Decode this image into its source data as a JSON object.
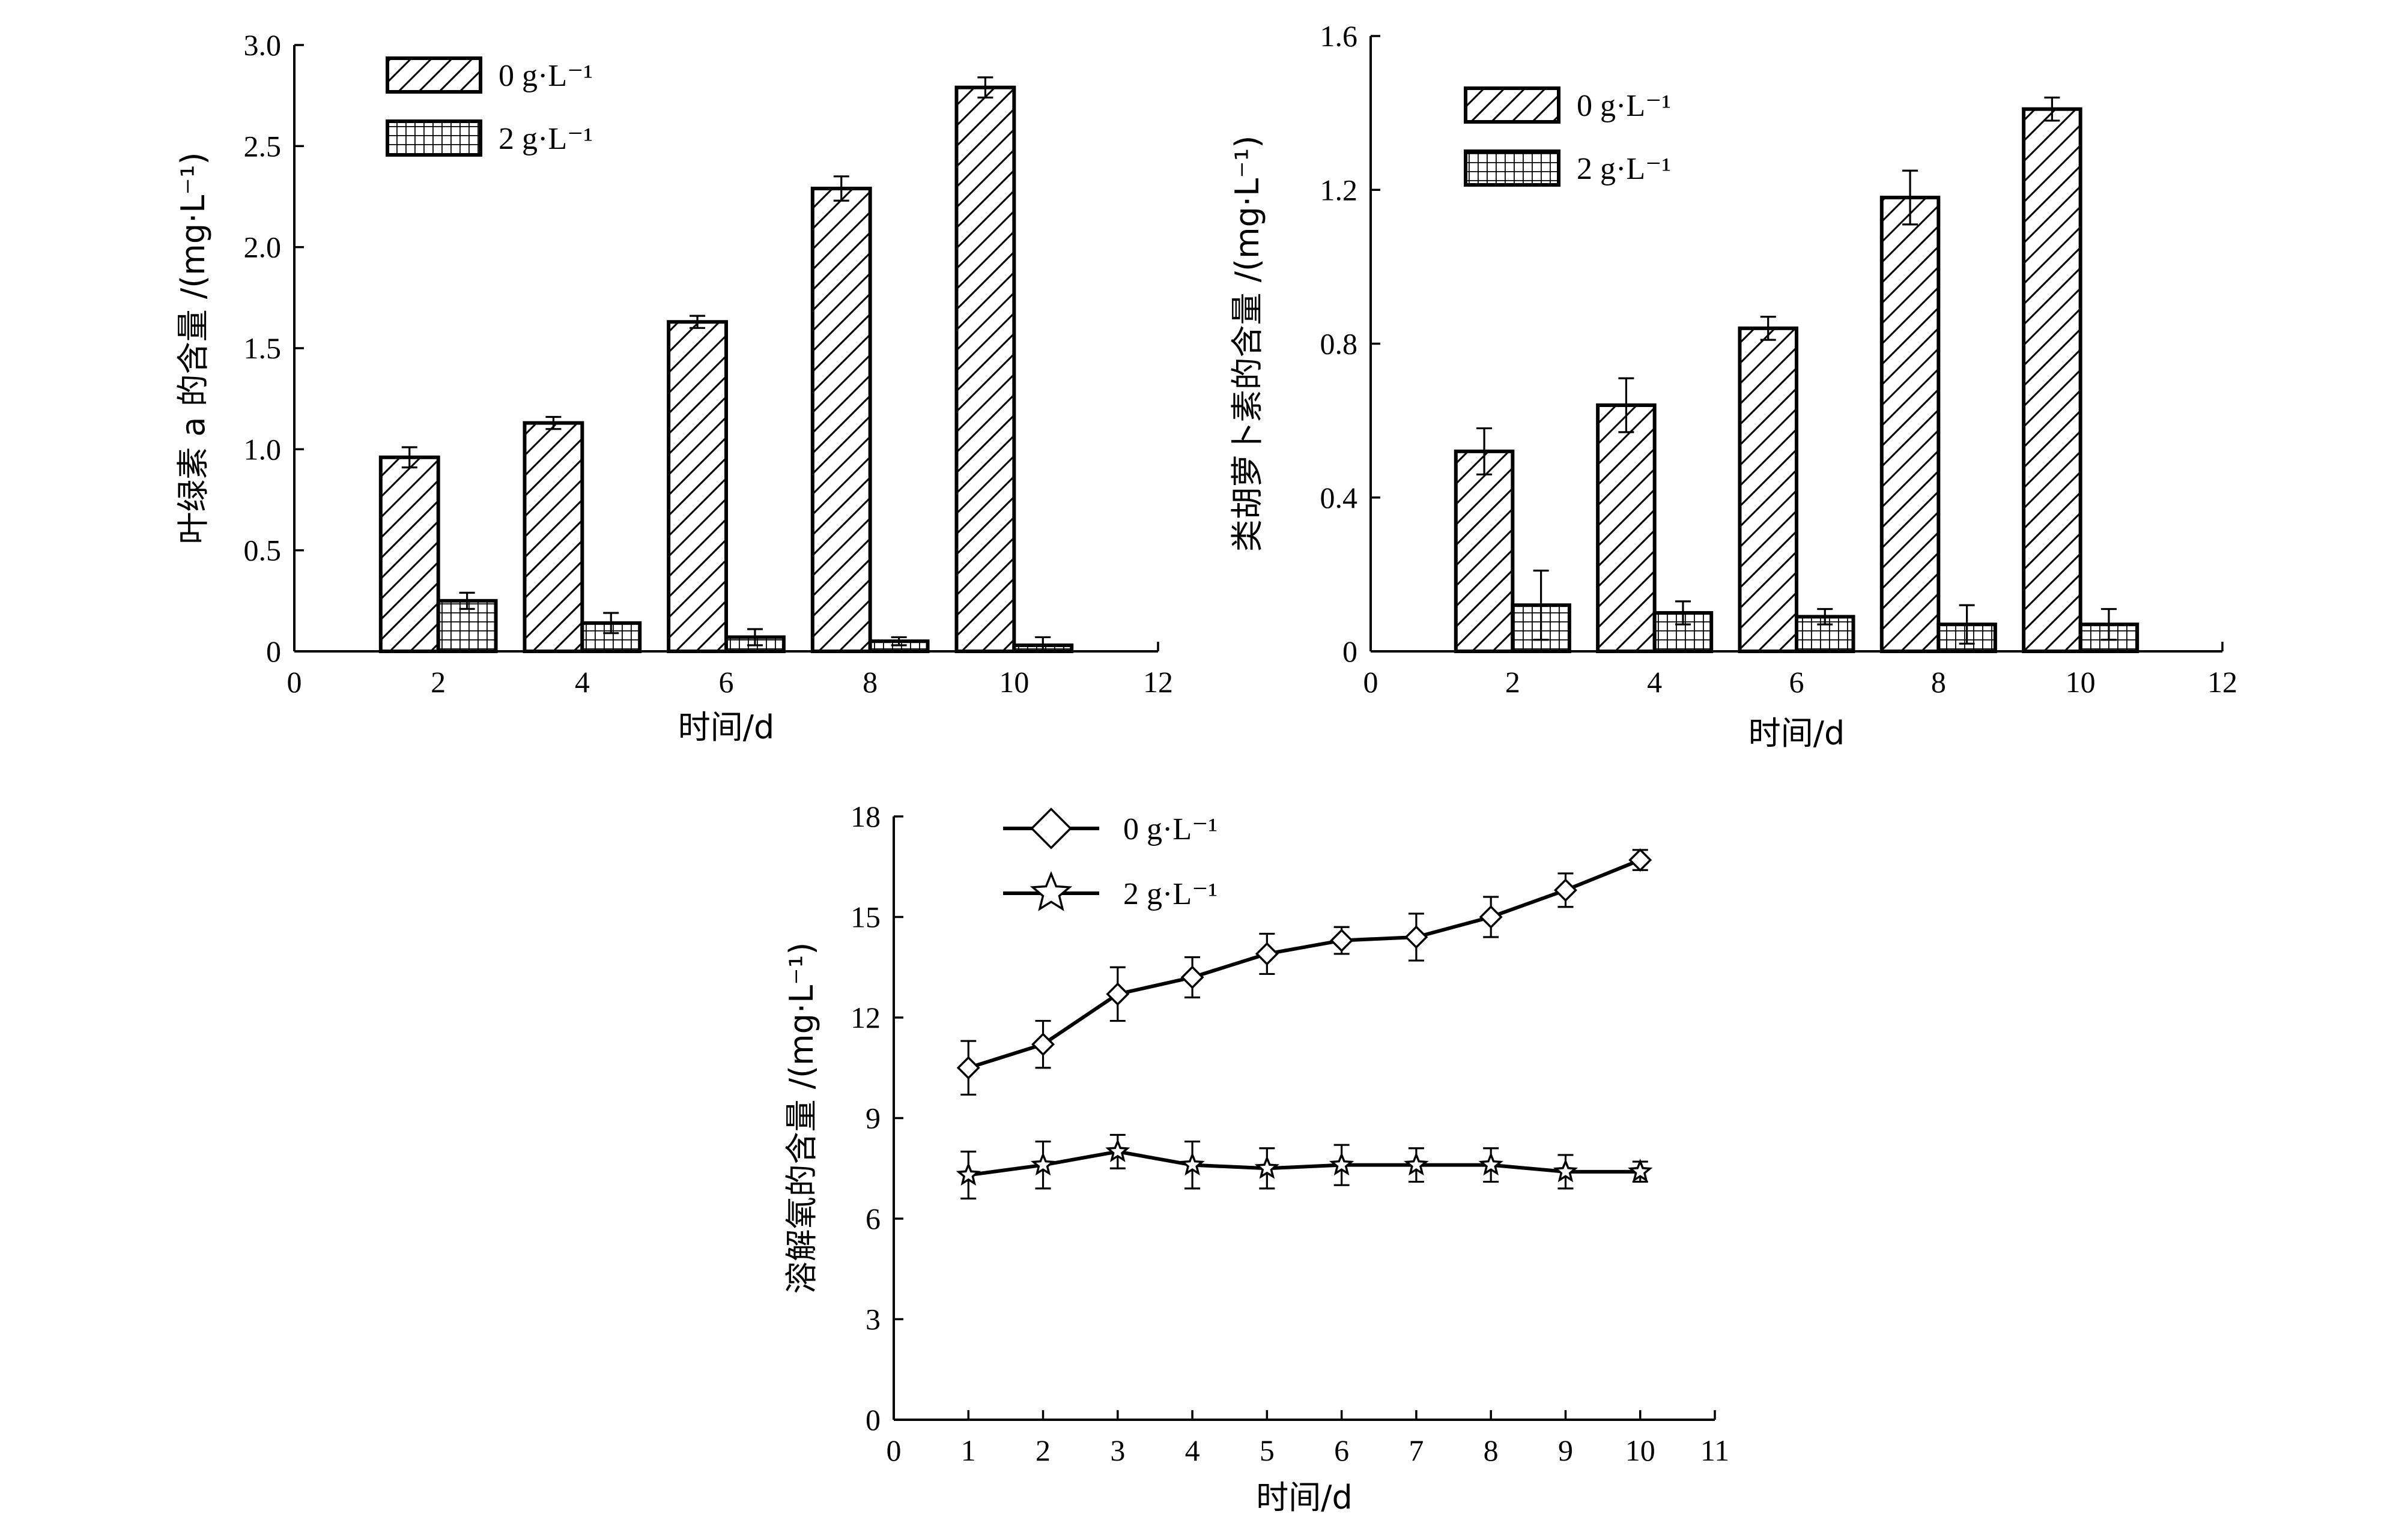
{
  "chart_data": [
    {
      "id": "chl",
      "type": "bar",
      "title": "",
      "xlabel": "时间/d",
      "ylabel": "叶绿素 a 的含量 /(mg·L⁻¹)",
      "xlim": [
        0,
        12
      ],
      "ylim": [
        0,
        3.0
      ],
      "xticks": [
        "0",
        "2",
        "4",
        "6",
        "8",
        "10",
        "12"
      ],
      "yticks": [
        "0",
        "0.5",
        "1.0",
        "1.5",
        "2.0",
        "2.5",
        "3.0"
      ],
      "categories": [
        2,
        4,
        6,
        8,
        10
      ],
      "series": [
        {
          "name": "0 g·L⁻¹",
          "pattern": "hatch",
          "values": [
            0.96,
            1.13,
            1.63,
            2.29,
            2.79
          ],
          "errors": [
            0.05,
            0.03,
            0.03,
            0.06,
            0.05
          ]
        },
        {
          "name": "2 g·L⁻¹",
          "pattern": "grid",
          "values": [
            0.25,
            0.14,
            0.07,
            0.05,
            0.03
          ],
          "errors": [
            0.04,
            0.05,
            0.04,
            0.02,
            0.04
          ]
        }
      ],
      "legend": "top-left",
      "grid": false
    },
    {
      "id": "car",
      "type": "bar",
      "title": "",
      "xlabel": "时间/d",
      "ylabel": "类胡萝卜素的含量 /(mg·L⁻¹)",
      "xlim": [
        0,
        12
      ],
      "ylim": [
        0,
        1.6
      ],
      "xticks": [
        "0",
        "2",
        "4",
        "6",
        "8",
        "10",
        "12"
      ],
      "yticks": [
        "0",
        "0.4",
        "0.8",
        "1.2",
        "1.6"
      ],
      "categories": [
        2,
        4,
        6,
        8,
        10
      ],
      "series": [
        {
          "name": "0 g·L⁻¹",
          "pattern": "hatch",
          "values": [
            0.52,
            0.64,
            0.84,
            1.18,
            1.41
          ],
          "errors": [
            0.06,
            0.07,
            0.03,
            0.07,
            0.03
          ]
        },
        {
          "name": "2 g·L⁻¹",
          "pattern": "grid",
          "values": [
            0.12,
            0.1,
            0.09,
            0.07,
            0.07
          ],
          "errors": [
            0.09,
            0.03,
            0.02,
            0.05,
            0.04
          ]
        }
      ],
      "legend": "top-center",
      "grid": false
    },
    {
      "id": "do",
      "type": "line",
      "title": "",
      "xlabel": "时间/d",
      "ylabel": "溶解氧的含量 /(mg·L⁻¹)",
      "xlim": [
        0,
        11
      ],
      "ylim": [
        0,
        18
      ],
      "xticks": [
        "0",
        "1",
        "2",
        "3",
        "4",
        "5",
        "6",
        "7",
        "8",
        "9",
        "10",
        "11"
      ],
      "yticks": [
        "0",
        "3",
        "6",
        "9",
        "12",
        "15",
        "18"
      ],
      "x": [
        1,
        2,
        3,
        4,
        5,
        6,
        7,
        8,
        9,
        10
      ],
      "series": [
        {
          "name": "0 g·L⁻¹",
          "marker": "diamond",
          "values": [
            10.5,
            11.2,
            12.7,
            13.2,
            13.9,
            14.3,
            14.4,
            15.0,
            15.8,
            16.7
          ],
          "errors": [
            0.8,
            0.7,
            0.8,
            0.6,
            0.6,
            0.4,
            0.7,
            0.6,
            0.5,
            0.3
          ]
        },
        {
          "name": "2 g·L⁻¹",
          "marker": "star",
          "values": [
            7.3,
            7.6,
            8.0,
            7.6,
            7.5,
            7.6,
            7.6,
            7.6,
            7.4,
            7.4
          ],
          "errors": [
            0.7,
            0.7,
            0.5,
            0.7,
            0.6,
            0.6,
            0.5,
            0.5,
            0.5,
            0.3
          ]
        }
      ],
      "legend": "top-left",
      "grid": false
    }
  ]
}
